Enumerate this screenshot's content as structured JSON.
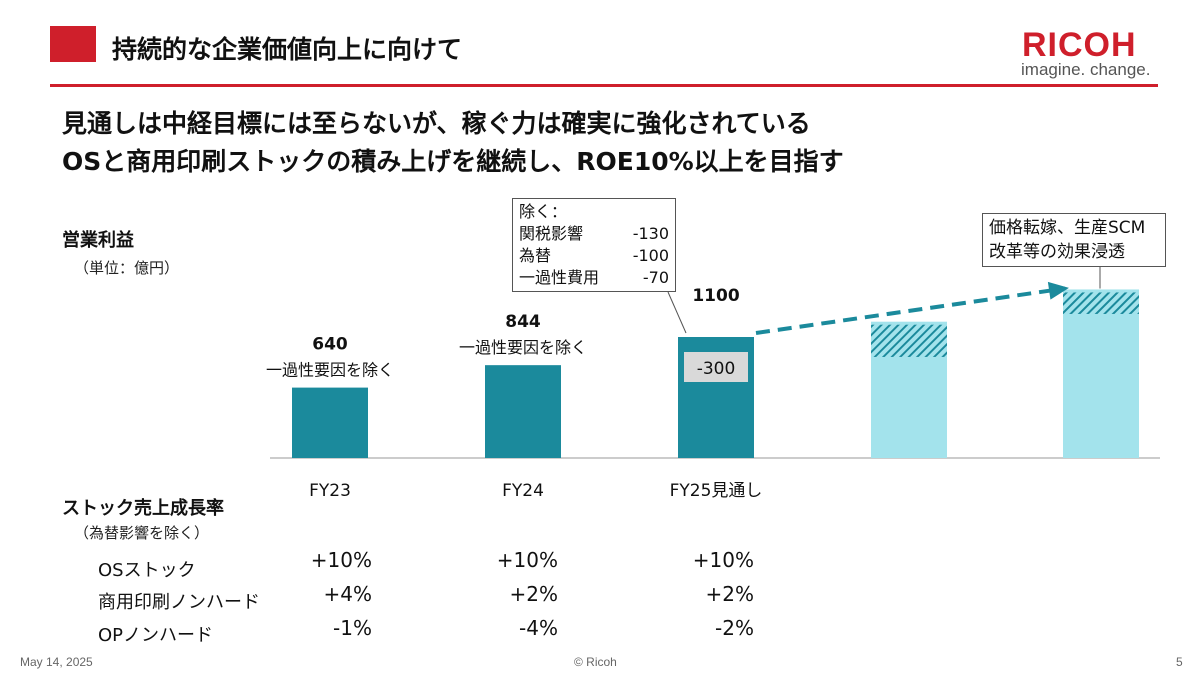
{
  "header": {
    "title": "持続的な企業価値向上に向けて",
    "logo_name": "RICOH",
    "logo_tagline": "imagine. change.",
    "brand_color": "#cf1f2b"
  },
  "headline": {
    "line1": "見通しは中経目標には至らないが、稼ぐ力は確実に強化されている",
    "line2": "OSと商用印刷ストックの積み上げを継続し、ROE10%以上を目指す"
  },
  "profit_section": {
    "label": "営業利益",
    "unit": "（単位：億円）"
  },
  "chart_data": {
    "type": "bar",
    "categories": [
      "FY23",
      "FY24",
      "FY25見通し",
      "",
      ""
    ],
    "values": [
      640,
      844,
      1100,
      null,
      null
    ],
    "value_labels": [
      "640",
      "844",
      "1100",
      "",
      ""
    ],
    "sublabels": [
      "一過性要因を除く",
      "一過性要因を除く",
      "",
      "",
      ""
    ],
    "segment_label": "-300",
    "segment_value": 300,
    "future_bars": [
      {
        "base_level": 0.47,
        "hatched_top_level": 0.62
      },
      {
        "base_level": 0.67,
        "hatched_top_level": 0.77
      }
    ],
    "colors": {
      "actual": "#1b8a9c",
      "future": "#a3e3ec",
      "hatch": "#1b8a9c",
      "segment_label_bg": "#d9d9d9",
      "arrow": "#1b8a9c"
    },
    "callout": {
      "title": "除く：",
      "items": [
        {
          "label": "関税影響",
          "amount": "-130"
        },
        {
          "label": "為替",
          "amount": "-100"
        },
        {
          "label": "一過性費用",
          "amount": "-70"
        }
      ]
    },
    "arrow_callout": {
      "line1": "価格転嫁、生産SCM",
      "line2": "改革等の効果浸透"
    }
  },
  "growth_section": {
    "label": "ストック売上成長率",
    "note": "（為替影響を除く）",
    "rows": [
      {
        "label": "OSストック",
        "values": [
          "+10%",
          "+10%",
          "+10%"
        ]
      },
      {
        "label": "商用印刷ノンハード",
        "values": [
          "+4%",
          "+2%",
          "+2%"
        ]
      },
      {
        "label": "OPノンハード",
        "values": [
          "-1%",
          "-4%",
          "-2%"
        ]
      }
    ]
  },
  "footer": {
    "date": "May 14, 2025",
    "copyright": "© Ricoh",
    "page": "5"
  }
}
